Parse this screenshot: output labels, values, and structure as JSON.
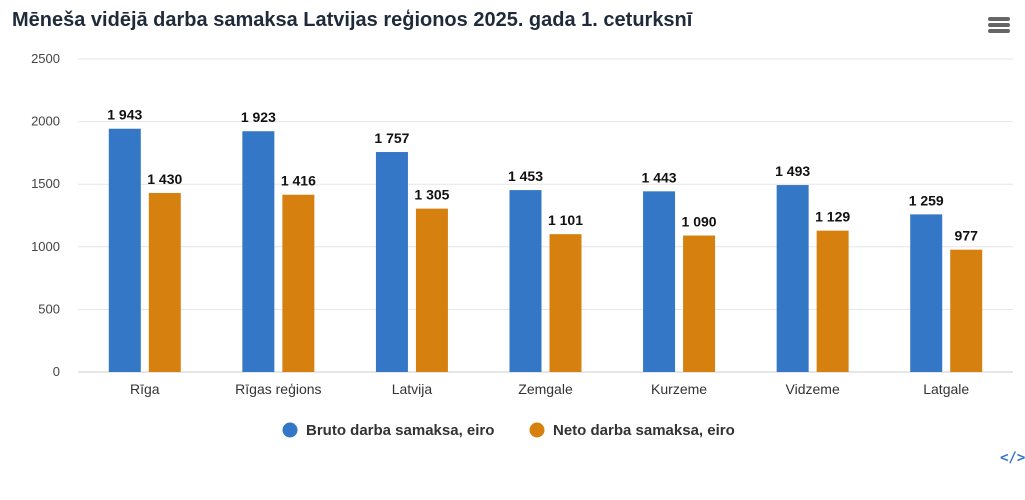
{
  "header": {
    "title": "Mēneša vidējā darba samaksa Latvijas reģionos 2025. gada 1. ceturksnī",
    "menu_icon": "hamburger-menu-icon",
    "embed_icon": "code-embed-icon",
    "embed_label": "</>"
  },
  "chart_data": {
    "type": "bar",
    "title": "Mēneša vidējā darba samaksa Latvijas reģionos 2025. gada 1. ceturksnī",
    "categories": [
      "Rīga",
      "Rīgas reģions",
      "Latvija",
      "Zemgale",
      "Kurzeme",
      "Vidzeme",
      "Latgale"
    ],
    "series": [
      {
        "name": "Bruto darba samaksa, eiro",
        "color": "#3377c6",
        "values": [
          1943,
          1923,
          1757,
          1453,
          1443,
          1493,
          1259
        ],
        "labels": [
          "1 943",
          "1 923",
          "1 757",
          "1 453",
          "1 443",
          "1 493",
          "1 259"
        ]
      },
      {
        "name": "Neto darba samaksa, eiro",
        "color": "#d6810f",
        "values": [
          1430,
          1416,
          1305,
          1101,
          1090,
          1129,
          977
        ],
        "labels": [
          "1 430",
          "1 416",
          "1 305",
          "1 101",
          "1 090",
          "1 129",
          "977"
        ]
      }
    ],
    "ylim": [
      0,
      2500
    ],
    "yticks": [
      0,
      500,
      1000,
      1500,
      2000,
      2500
    ],
    "grid": true,
    "legend": "bottom-center",
    "xlabel": "",
    "ylabel": ""
  }
}
